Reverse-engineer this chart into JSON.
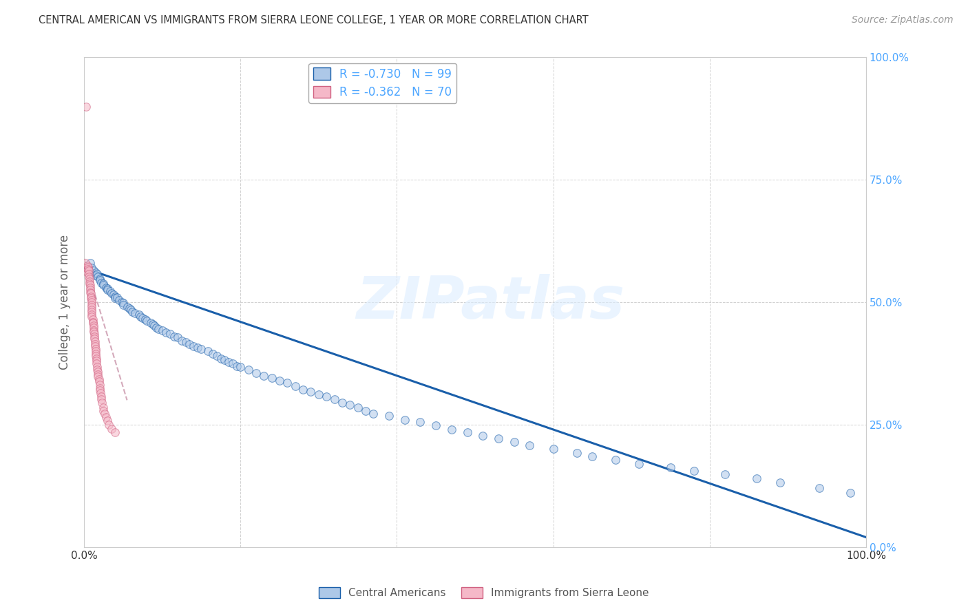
{
  "title": "CENTRAL AMERICAN VS IMMIGRANTS FROM SIERRA LEONE COLLEGE, 1 YEAR OR MORE CORRELATION CHART",
  "source": "Source: ZipAtlas.com",
  "ylabel": "College, 1 year or more",
  "watermark": "ZIPatlas",
  "legend_label1": "Central Americans",
  "legend_label2": "Immigrants from Sierra Leone",
  "R_blue": -0.73,
  "N_blue": 99,
  "R_pink": -0.362,
  "N_pink": 70,
  "color_blue": "#adc8e8",
  "color_pink": "#f5b8c8",
  "line_blue": "#1a5faa",
  "line_pink": "#d06080",
  "line_pink_dash": "#d4aabb",
  "bg_color": "#ffffff",
  "grid_color": "#cccccc",
  "title_color": "#333333",
  "ytick_right_color": "#4da6ff",
  "blue_x": [
    0.008,
    0.01,
    0.012,
    0.015,
    0.015,
    0.017,
    0.018,
    0.02,
    0.02,
    0.022,
    0.025,
    0.025,
    0.028,
    0.03,
    0.03,
    0.033,
    0.035,
    0.038,
    0.04,
    0.04,
    0.042,
    0.045,
    0.048,
    0.05,
    0.05,
    0.055,
    0.058,
    0.06,
    0.062,
    0.065,
    0.07,
    0.072,
    0.075,
    0.078,
    0.08,
    0.085,
    0.088,
    0.09,
    0.092,
    0.095,
    0.1,
    0.105,
    0.11,
    0.115,
    0.12,
    0.125,
    0.13,
    0.135,
    0.14,
    0.145,
    0.15,
    0.158,
    0.165,
    0.17,
    0.175,
    0.18,
    0.185,
    0.19,
    0.195,
    0.2,
    0.21,
    0.22,
    0.23,
    0.24,
    0.25,
    0.26,
    0.27,
    0.28,
    0.29,
    0.3,
    0.31,
    0.32,
    0.33,
    0.34,
    0.35,
    0.36,
    0.37,
    0.39,
    0.41,
    0.43,
    0.45,
    0.47,
    0.49,
    0.51,
    0.53,
    0.55,
    0.57,
    0.6,
    0.63,
    0.65,
    0.68,
    0.71,
    0.75,
    0.78,
    0.82,
    0.86,
    0.89,
    0.94,
    0.98
  ],
  "blue_y": [
    0.58,
    0.57,
    0.565,
    0.56,
    0.555,
    0.558,
    0.552,
    0.548,
    0.545,
    0.54,
    0.538,
    0.535,
    0.53,
    0.528,
    0.525,
    0.522,
    0.518,
    0.515,
    0.512,
    0.508,
    0.51,
    0.505,
    0.5,
    0.498,
    0.495,
    0.49,
    0.487,
    0.485,
    0.48,
    0.478,
    0.475,
    0.47,
    0.468,
    0.465,
    0.462,
    0.458,
    0.455,
    0.452,
    0.448,
    0.445,
    0.442,
    0.438,
    0.435,
    0.43,
    0.428,
    0.422,
    0.418,
    0.415,
    0.41,
    0.408,
    0.405,
    0.4,
    0.395,
    0.39,
    0.385,
    0.382,
    0.378,
    0.375,
    0.37,
    0.368,
    0.362,
    0.355,
    0.35,
    0.345,
    0.34,
    0.335,
    0.328,
    0.322,
    0.318,
    0.312,
    0.308,
    0.302,
    0.295,
    0.29,
    0.285,
    0.278,
    0.272,
    0.268,
    0.26,
    0.255,
    0.248,
    0.24,
    0.235,
    0.228,
    0.222,
    0.215,
    0.208,
    0.2,
    0.192,
    0.185,
    0.178,
    0.17,
    0.162,
    0.155,
    0.148,
    0.14,
    0.132,
    0.12,
    0.11
  ],
  "pink_x": [
    0.002,
    0.003,
    0.004,
    0.004,
    0.005,
    0.005,
    0.006,
    0.006,
    0.006,
    0.007,
    0.007,
    0.007,
    0.008,
    0.008,
    0.008,
    0.008,
    0.009,
    0.009,
    0.009,
    0.01,
    0.01,
    0.01,
    0.01,
    0.01,
    0.01,
    0.01,
    0.01,
    0.011,
    0.011,
    0.011,
    0.012,
    0.012,
    0.012,
    0.012,
    0.013,
    0.013,
    0.013,
    0.014,
    0.014,
    0.014,
    0.015,
    0.015,
    0.015,
    0.015,
    0.016,
    0.016,
    0.016,
    0.017,
    0.017,
    0.018,
    0.018,
    0.018,
    0.019,
    0.019,
    0.02,
    0.02,
    0.02,
    0.021,
    0.022,
    0.022,
    0.023,
    0.025,
    0.025,
    0.026,
    0.028,
    0.03,
    0.032,
    0.035,
    0.04,
    0.003
  ],
  "pink_y": [
    0.58,
    0.57,
    0.56,
    0.575,
    0.572,
    0.568,
    0.565,
    0.558,
    0.552,
    0.548,
    0.542,
    0.538,
    0.535,
    0.53,
    0.525,
    0.52,
    0.518,
    0.512,
    0.508,
    0.505,
    0.5,
    0.495,
    0.49,
    0.485,
    0.48,
    0.475,
    0.47,
    0.465,
    0.46,
    0.458,
    0.452,
    0.448,
    0.442,
    0.44,
    0.435,
    0.43,
    0.425,
    0.42,
    0.415,
    0.41,
    0.405,
    0.4,
    0.395,
    0.39,
    0.385,
    0.38,
    0.375,
    0.368,
    0.362,
    0.358,
    0.352,
    0.348,
    0.342,
    0.338,
    0.332,
    0.325,
    0.32,
    0.315,
    0.308,
    0.302,
    0.295,
    0.285,
    0.278,
    0.272,
    0.265,
    0.258,
    0.25,
    0.242,
    0.235,
    0.9
  ],
  "blue_line_x": [
    0.0,
    1.0
  ],
  "blue_line_y": [
    0.57,
    0.02
  ],
  "pink_line_x": [
    0.0,
    0.055
  ],
  "pink_line_y": [
    0.59,
    0.3
  ],
  "xlim": [
    0.0,
    1.0
  ],
  "ylim": [
    0.0,
    1.0
  ],
  "scatter_size": 70,
  "scatter_alpha": 0.55,
  "scatter_linewidth": 0.8
}
